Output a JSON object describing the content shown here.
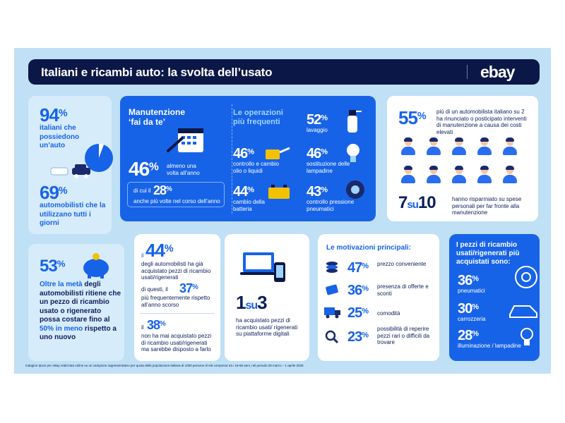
{
  "header": {
    "title": "Italiani e ricambi auto: la svolta dell’usato",
    "logo": "ebay"
  },
  "owners": {
    "pct1": "94",
    "unit": "%",
    "text1": "italiani che possiedono un’auto",
    "pct2": "69",
    "text2": "automobilisti che la utilizzano tutti i giorni"
  },
  "diy": {
    "title": "Manutenzione ‘fai da te’",
    "pct": "46",
    "unit": "%",
    "text": "almeno una volta all’anno",
    "sub_pre": "di cui il",
    "sub_pct": "28",
    "sub_post": "anche più volte nel corso dell’anno",
    "ops_title": "Le operazioni più frequenti",
    "ops": [
      {
        "pct": "52",
        "label": "lavaggio"
      },
      {
        "pct": "46",
        "label": "controllo e cambio olio o liquidi"
      },
      {
        "pct": "46",
        "label": "sostituzione delle lampadine"
      },
      {
        "pct": "44",
        "label": "cambio della batteria"
      },
      {
        "pct": "43",
        "label": "controllo pressione pneumatici"
      }
    ]
  },
  "postpone": {
    "pct": "55",
    "unit": "%",
    "text": "più di un automobilista italiano su 2 ha rinunciato o posticipato interventi di manutenzione a causa dei costi elevati",
    "ratio_a": "7",
    "ratio_su": "su",
    "ratio_b": "10",
    "ratio_text": "hanno risparmiato su spese personali per far fronte alla manutenzione"
  },
  "savings": {
    "pct": "53",
    "unit": "%",
    "text_bold": "Oltre la metà",
    "text_rest": "degli automobilisti ritiene che un pezzo di ricambio usato o rigenerato possa costare fino al",
    "text_hl": "50% in meno",
    "text_end": "rispetto a uno nuovo"
  },
  "bought": {
    "pre": "il",
    "pct": "44",
    "unit": "%",
    "text": "degli automobilisti ha già acquistato pezzi di ricambio usati/rigenerati",
    "sub_pre": "di questi, il",
    "sub_pct": "37",
    "sub_text": "più frequentemente rispetto all’anno scorso",
    "never_pre": "il",
    "never_pct": "38",
    "never_text": "non ha mai acquistato pezzi di ricambio usati/rigenerati ma sarebbe disposto a farlo"
  },
  "platform": {
    "a": "1",
    "su": "su",
    "b": "3",
    "text": "ha acquistato pezzi di ricambio usati/ rigenerati su piattaforme digitali"
  },
  "motivations": {
    "title": "Le motivazioni principali:",
    "items": [
      {
        "pct": "47",
        "label": "prezzo conveniente"
      },
      {
        "pct": "36",
        "label": "presenza di offerte e sconti"
      },
      {
        "pct": "25",
        "label": "comodità"
      },
      {
        "pct": "23",
        "label": "possibilità di reperire pezzi rari o difficili da trovare"
      }
    ]
  },
  "parts": {
    "title": "I pezzi di ricambio usati/rigenerati più acquistati sono:",
    "items": [
      {
        "pct": "36",
        "label": "pneumatici"
      },
      {
        "pct": "30",
        "label": "carrozzeria"
      },
      {
        "pct": "28",
        "label": "illuminazione / lampadine"
      }
    ]
  },
  "footnote": "Indagine Ipsos per eBay realizzata online su un campione rappresentativo per quota della popolazione italiana di 1000 persone di età compresa tra i 18-65 anni, nel periodo 28 marzo – 1 aprile 2025",
  "colors": {
    "navy": "#0b1747",
    "blue": "#1763e8",
    "light": "#bfe0f5"
  }
}
